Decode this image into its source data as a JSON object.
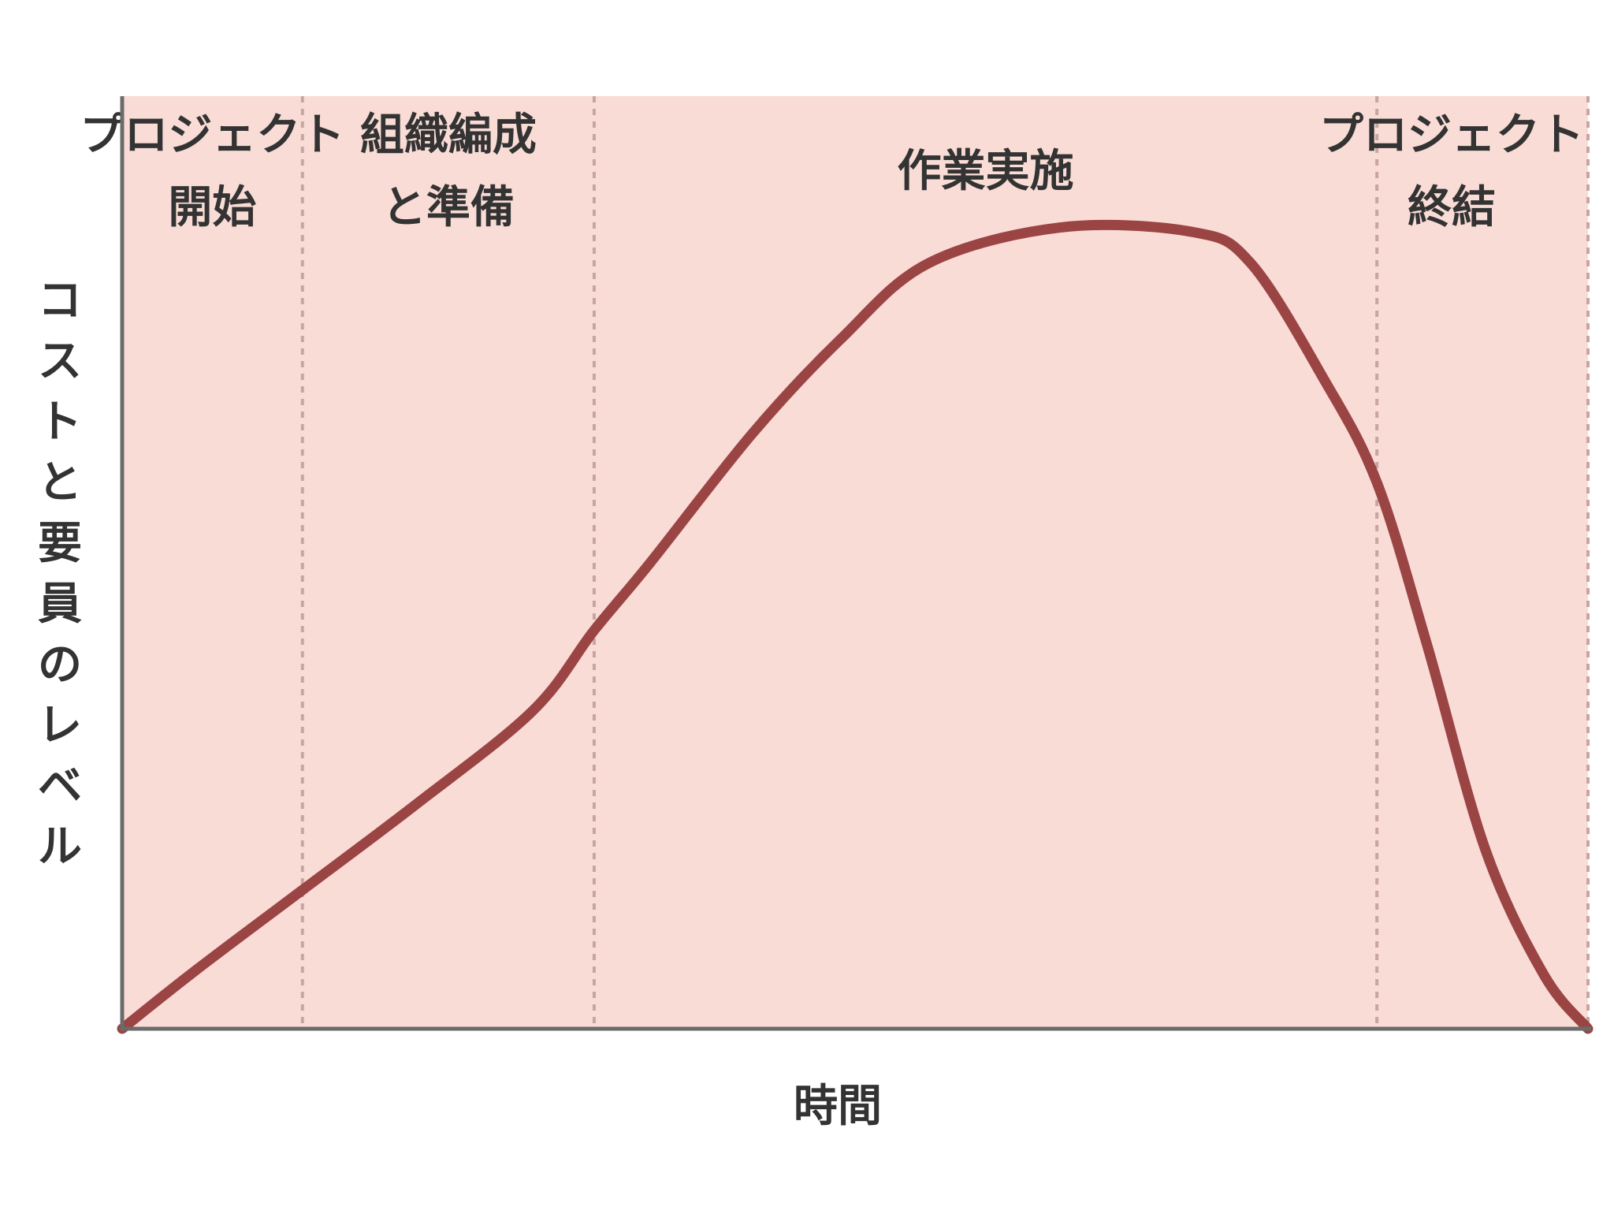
{
  "chart_data": {
    "type": "area",
    "title": "",
    "xlabel": "時間",
    "ylabel": "コストと要員のレベル",
    "colors": {
      "background": "#f9dcd6",
      "curve": "#9b4444",
      "axis": "#6b6b6b",
      "divider": "#c9a5a1",
      "text": "#333333"
    },
    "phases": [
      {
        "lines": [
          "プロジェクト",
          "開始"
        ],
        "start": 0.0,
        "end": 0.123
      },
      {
        "lines": [
          "組織編成",
          "と準備"
        ],
        "start": 0.123,
        "end": 0.322
      },
      {
        "lines": [
          "作業実施"
        ],
        "start": 0.322,
        "end": 0.856
      },
      {
        "lines": [
          "プロジェクト",
          "終結"
        ],
        "start": 0.856,
        "end": 1.0
      }
    ],
    "x": [
      0.0,
      0.05,
      0.123,
      0.2,
      0.28,
      0.322,
      0.36,
      0.43,
      0.49,
      0.55,
      0.64,
      0.73,
      0.77,
      0.82,
      0.856,
      0.89,
      0.93,
      0.97,
      1.0
    ],
    "y": [
      0.0,
      0.065,
      0.155,
      0.25,
      0.355,
      0.445,
      0.52,
      0.665,
      0.77,
      0.855,
      0.895,
      0.89,
      0.855,
      0.725,
      0.61,
      0.43,
      0.2,
      0.06,
      0.0
    ],
    "xlim": [
      0,
      1
    ],
    "ylim": [
      0,
      1
    ],
    "grid": false
  }
}
